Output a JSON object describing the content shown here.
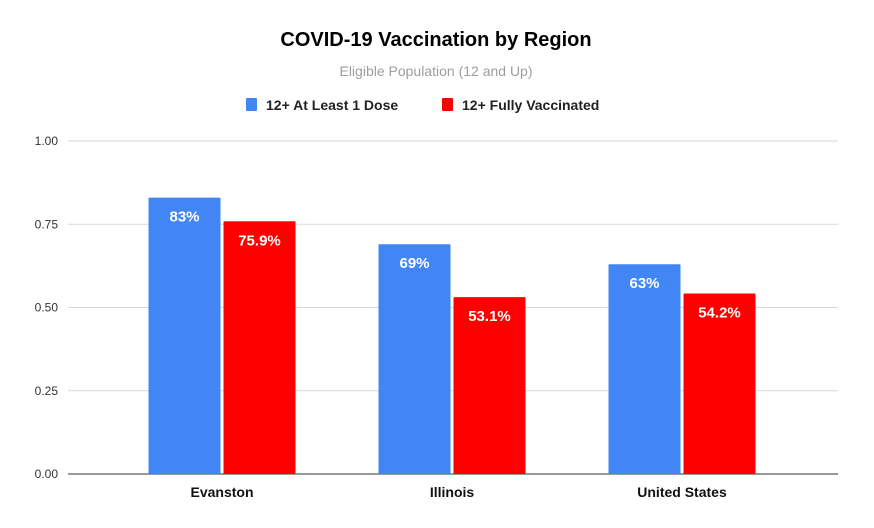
{
  "chart_data": {
    "type": "bar",
    "title": "COVID-19 Vaccination by Region",
    "subtitle": "Eligible Population (12 and Up)",
    "categories": [
      "Evanston",
      "Illinois",
      "United States"
    ],
    "series": [
      {
        "name": "12+ At Least 1 Dose",
        "color": "#4285f4",
        "values": [
          0.83,
          0.69,
          0.63
        ],
        "labels": [
          "83%",
          "69%",
          "63%"
        ]
      },
      {
        "name": "12+ Fully Vaccinated",
        "color": "#ff0000",
        "values": [
          0.759,
          0.531,
          0.542
        ],
        "labels": [
          "75.9%",
          "53.1%",
          "54.2%"
        ]
      }
    ],
    "ylim": [
      0,
      1
    ],
    "yticks": [
      "0.00",
      "0.25",
      "0.50",
      "0.75",
      "1.00"
    ],
    "grid": true,
    "legend": "top",
    "xlabel": "",
    "ylabel": ""
  }
}
